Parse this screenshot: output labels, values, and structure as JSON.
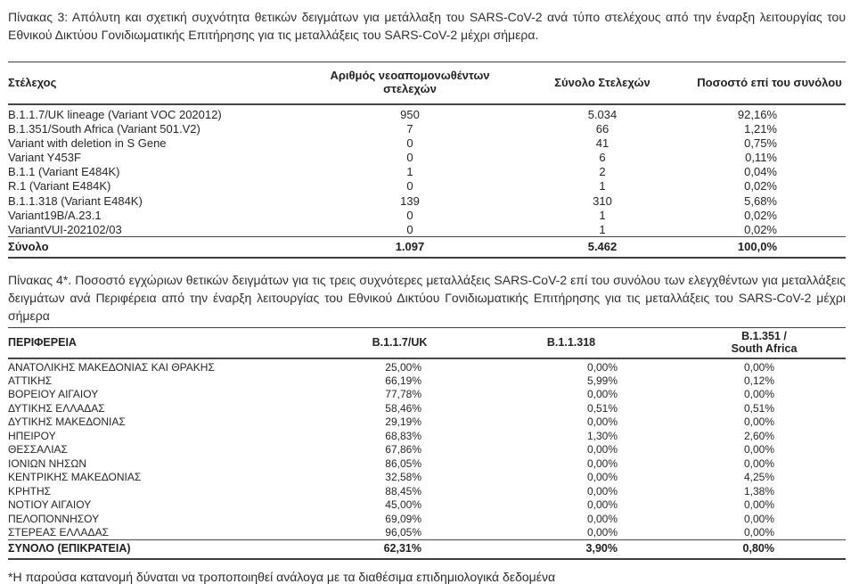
{
  "document": {
    "table3": {
      "caption": "Πίνακας 3: Απόλυτη και σχετική συχνότητα θετικών δειγμάτων για μετάλλαξη του SARS-CoV-2 ανά τύπο στελέχους από την έναρξη λειτουργίας του Εθνικού Δικτύου Γονιδιωματικής Επιτήρησης για τις μεταλλάξεις του SARS-CoV-2 μέχρι σήμερα.",
      "columns": [
        "Στέλεχος",
        "Αριθμός νεοαπομονωθέντων στελεχών",
        "Σύνολο Στελεχών",
        "Ποσοστό επί του συνόλου"
      ],
      "rows": [
        [
          "B.1.1.7/UK lineage (Variant VOC 202012)",
          "950",
          "5.034",
          "92,16%"
        ],
        [
          "B.1.351/South Africa (Variant 501.V2)",
          "7",
          "66",
          "1,21%"
        ],
        [
          "Variant with deletion in S Gene",
          "0",
          "41",
          "0,75%"
        ],
        [
          "Variant Y453F",
          "0",
          "6",
          "0,11%"
        ],
        [
          "B.1.1 (Variant E484K)",
          "1",
          "2",
          "0,04%"
        ],
        [
          "R.1 (Variant E484K)",
          "0",
          "1",
          "0,02%"
        ],
        [
          "B.1.1.318 (Variant E484K)",
          "139",
          "310",
          "5,68%"
        ],
        [
          "Variant19B/A.23.1",
          "0",
          "1",
          "0,02%"
        ],
        [
          "VariantVUI-202102/03",
          "0",
          "1",
          "0,02%"
        ]
      ],
      "total": [
        "Σύνολο",
        "1.097",
        "5.462",
        "100,0%"
      ]
    },
    "table4": {
      "caption": "Πίνακας 4*. Ποσοστό εγχώριων θετικών δειγμάτων για τις τρεις συχνότερες μεταλλάξεις SARS-CoV-2 επί του συνόλου των ελεγχθέντων για μεταλλάξεις δειγμάτων ανά Περιφέρεια από την έναρξη λειτουργίας του Εθνικού Δικτύου Γονιδιωματικής Επιτήρησης για τις μεταλλάξεις του SARS-CoV-2 μέχρι σήμερα",
      "columns": [
        "ΠΕΡΙΦΕΡΕΙΑ",
        "B.1.1.7/UK",
        "B.1.1.318"
      ],
      "column4_line1": "B.1.351 /",
      "column4_line2": "South Africa",
      "rows": [
        [
          "ΑΝΑΤΟΛΙΚΗΣ ΜΑΚΕΔΟΝΙΑΣ ΚΑΙ ΘΡΑΚΗΣ",
          "25,00%",
          "0,00%",
          "0,00%"
        ],
        [
          "ΑΤΤΙΚΗΣ",
          "66,19%",
          "5,99%",
          "0,12%"
        ],
        [
          "ΒΟΡΕΙΟΥ ΑΙΓΑΙΟΥ",
          "77,78%",
          "0,00%",
          "0,00%"
        ],
        [
          "ΔΥΤΙΚΗΣ ΕΛΛΑΔΑΣ",
          "58,46%",
          "0,51%",
          "0,51%"
        ],
        [
          "ΔΥΤΙΚΗΣ ΜΑΚΕΔΟΝΙΑΣ",
          "29,19%",
          "0,00%",
          "0,00%"
        ],
        [
          "ΗΠΕΙΡΟΥ",
          "68,83%",
          "1,30%",
          "2,60%"
        ],
        [
          "ΘΕΣΣΑΛΙΑΣ",
          "67,86%",
          "0,00%",
          "0,00%"
        ],
        [
          "ΙΟΝΙΩΝ ΝΗΣΩΝ",
          "86,05%",
          "0,00%",
          "0,00%"
        ],
        [
          "ΚΕΝΤΡΙΚΗΣ ΜΑΚΕΔΟΝΙΑΣ",
          "32,58%",
          "0,00%",
          "4,25%"
        ],
        [
          "ΚΡΗΤΗΣ",
          "88,45%",
          "0,00%",
          "1,38%"
        ],
        [
          "ΝΟΤΙΟΥ ΑΙΓΑΙΟΥ",
          "45,00%",
          "0,00%",
          "0,00%"
        ],
        [
          "ΠΕΛΟΠΟΝΝΗΣΟΥ",
          "69,09%",
          "0,00%",
          "0,00%"
        ],
        [
          "ΣΤΕΡΕΑΣ ΕΛΛΑΔΑΣ",
          "96,05%",
          "0,00%",
          "0,00%"
        ]
      ],
      "total": [
        "ΣΥΝΟΛΟ (ΕΠΙΚΡΑΤΕΙΑ)",
        "62,31%",
        "3,90%",
        "0,80%"
      ]
    },
    "footnote": "*Η παρούσα κατανομή δύναται να τροποποιηθεί ανάλογα με τα διαθέσιμα επιδημιολογικά δεδομένα"
  }
}
